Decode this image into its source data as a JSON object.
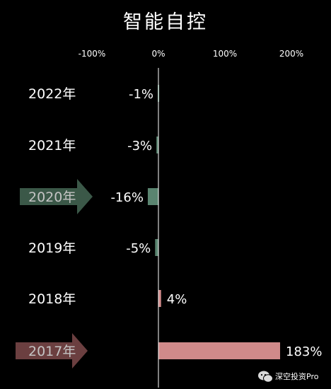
{
  "chart_data": {
    "type": "bar",
    "orientation": "horizontal",
    "title": "智能自控",
    "categories": [
      "2022年",
      "2021年",
      "2020年",
      "2019年",
      "2018年",
      "2017年"
    ],
    "values": [
      -1,
      -3,
      -16,
      -5,
      4,
      183
    ],
    "value_labels": [
      "-1%",
      "-3%",
      "-16%",
      "-5%",
      "4%",
      "183%"
    ],
    "highlighted_categories": [
      "2020年",
      "2017年"
    ],
    "xlim": [
      -100,
      200
    ],
    "xticks": [
      {
        "value": -100,
        "label": "-100%"
      },
      {
        "value": 0,
        "label": "0%"
      },
      {
        "value": 100,
        "label": "100%"
      },
      {
        "value": 200,
        "label": "200%"
      }
    ],
    "grid": false,
    "legend": "none",
    "colors": {
      "background": "#000000",
      "negative_bar": "#5a8470",
      "positive_bar": "#d08a8a",
      "arrow_2020": "#3b5848",
      "arrow_2017": "#6b3f40",
      "text": "#ffffff",
      "highlight_text": "#c4c4c4"
    }
  },
  "watermark": {
    "text": "深空投资Pro",
    "icon": "wechat-icon"
  }
}
